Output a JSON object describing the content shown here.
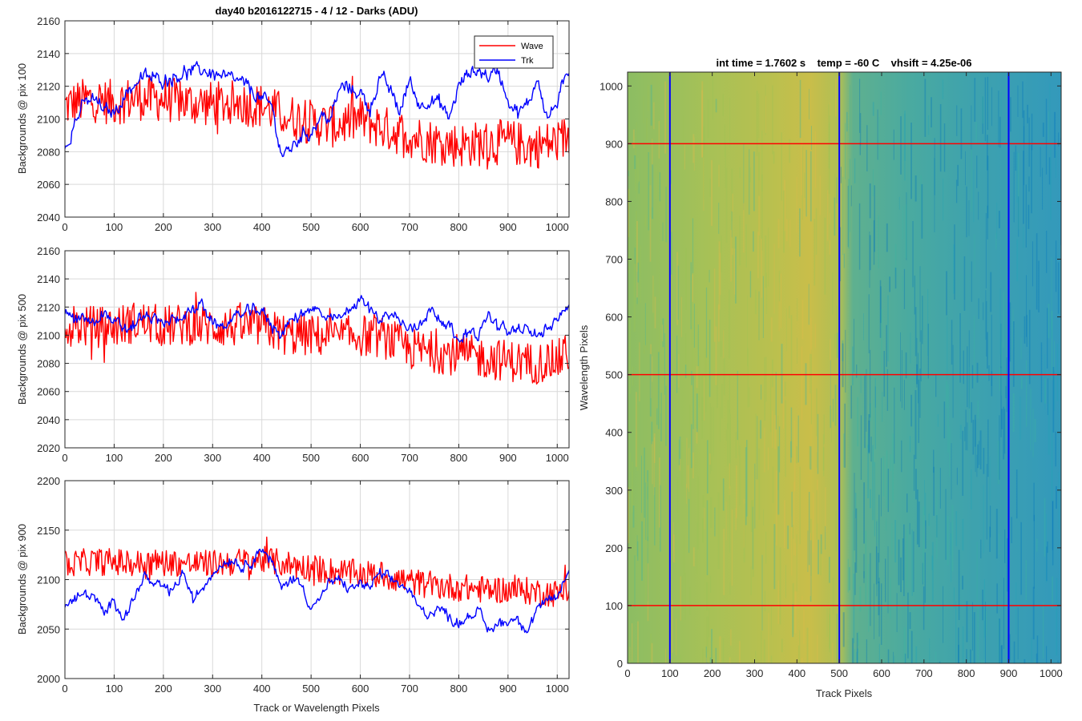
{
  "figure": {
    "title": "day40 b2016122715 - 4 / 12 - Darks (ADU)",
    "xlabel_left": "Track or Wavelength Pixels"
  },
  "legend": {
    "entries": [
      "Wave",
      "Trk"
    ]
  },
  "colors": {
    "wave": "#ff0000",
    "trk": "#0000ff",
    "grid": "#d9d9d9",
    "axis": "#262626"
  },
  "chart_data": [
    {
      "type": "line",
      "title": "day40 b2016122715 - 4 / 12 - Darks (ADU)",
      "xlabel": "",
      "ylabel": "Backgrounds @ pix 100",
      "xlim": [
        0,
        1024
      ],
      "ylim": [
        2040,
        2160
      ],
      "xticks": [
        0,
        100,
        200,
        300,
        400,
        500,
        600,
        700,
        800,
        900,
        1000
      ],
      "yticks": [
        2040,
        2060,
        2080,
        2100,
        2120,
        2140,
        2160
      ],
      "grid": true,
      "legend_position": "top-right",
      "series": [
        {
          "name": "Wave",
          "color": "#ff0000",
          "x": [
            0,
            50,
            100,
            150,
            200,
            250,
            300,
            350,
            400,
            450,
            500,
            550,
            600,
            650,
            700,
            750,
            800,
            850,
            900,
            950,
            1000,
            1024
          ],
          "values": [
            2108,
            2112,
            2110,
            2113,
            2112,
            2110,
            2109,
            2110,
            2108,
            2102,
            2098,
            2096,
            2100,
            2094,
            2090,
            2086,
            2084,
            2085,
            2086,
            2083,
            2086,
            2090
          ],
          "noise": 14
        },
        {
          "name": "Trk",
          "color": "#0000ff",
          "x": [
            0,
            20,
            40,
            60,
            80,
            100,
            130,
            160,
            200,
            240,
            280,
            320,
            360,
            400,
            420,
            440,
            460,
            480,
            500,
            520,
            540,
            560,
            600,
            620,
            640,
            660,
            680,
            700,
            720,
            740,
            760,
            780,
            800,
            820,
            840,
            860,
            880,
            900,
            920,
            940,
            960,
            980,
            1000,
            1024
          ],
          "values": [
            2082,
            2098,
            2110,
            2112,
            2105,
            2104,
            2118,
            2126,
            2124,
            2128,
            2130,
            2126,
            2122,
            2112,
            2108,
            2078,
            2082,
            2090,
            2092,
            2102,
            2100,
            2120,
            2116,
            2106,
            2126,
            2118,
            2104,
            2124,
            2108,
            2112,
            2110,
            2100,
            2120,
            2128,
            2130,
            2126,
            2130,
            2112,
            2104,
            2108,
            2126,
            2100,
            2110,
            2130
          ],
          "noise": 4
        }
      ]
    },
    {
      "type": "line",
      "title": "",
      "xlabel": "",
      "ylabel": "Backgrounds @ pix 500",
      "xlim": [
        0,
        1024
      ],
      "ylim": [
        2020,
        2160
      ],
      "xticks": [
        0,
        100,
        200,
        300,
        400,
        500,
        600,
        700,
        800,
        900,
        1000
      ],
      "yticks": [
        2020,
        2040,
        2060,
        2080,
        2100,
        2120,
        2140,
        2160
      ],
      "grid": true,
      "series": [
        {
          "name": "Wave",
          "color": "#ff0000",
          "x": [
            0,
            50,
            100,
            150,
            200,
            250,
            300,
            350,
            400,
            450,
            500,
            550,
            600,
            650,
            700,
            750,
            800,
            850,
            900,
            950,
            1000,
            1024
          ],
          "values": [
            2108,
            2106,
            2106,
            2110,
            2106,
            2108,
            2106,
            2106,
            2106,
            2100,
            2100,
            2098,
            2100,
            2098,
            2090,
            2088,
            2086,
            2084,
            2082,
            2080,
            2082,
            2088
          ],
          "noise": 15
        },
        {
          "name": "Trk",
          "color": "#0000ff",
          "x": [
            0,
            20,
            40,
            60,
            80,
            100,
            130,
            160,
            200,
            240,
            280,
            300,
            320,
            360,
            400,
            420,
            440,
            460,
            500,
            540,
            560,
            600,
            620,
            640,
            660,
            680,
            700,
            720,
            740,
            760,
            780,
            800,
            820,
            840,
            860,
            880,
            900,
            920,
            940,
            960,
            980,
            1000,
            1024
          ],
          "values": [
            2116,
            2110,
            2112,
            2108,
            2118,
            2108,
            2104,
            2114,
            2108,
            2114,
            2122,
            2108,
            2106,
            2116,
            2118,
            2106,
            2102,
            2110,
            2120,
            2110,
            2112,
            2126,
            2118,
            2112,
            2116,
            2110,
            2104,
            2108,
            2118,
            2114,
            2106,
            2096,
            2104,
            2100,
            2114,
            2106,
            2102,
            2106,
            2102,
            2098,
            2108,
            2112,
            2124
          ],
          "noise": 4
        }
      ]
    },
    {
      "type": "line",
      "title": "",
      "xlabel": "Track or Wavelength Pixels",
      "ylabel": "Backgrounds @ pix 900",
      "xlim": [
        0,
        1024
      ],
      "ylim": [
        2000,
        2200
      ],
      "xticks": [
        0,
        100,
        200,
        300,
        400,
        500,
        600,
        700,
        800,
        900,
        1000
      ],
      "yticks": [
        2000,
        2050,
        2100,
        2150,
        2200
      ],
      "grid": true,
      "series": [
        {
          "name": "Wave",
          "color": "#ff0000",
          "x": [
            0,
            50,
            100,
            150,
            200,
            250,
            300,
            350,
            400,
            450,
            500,
            550,
            600,
            650,
            700,
            750,
            800,
            850,
            900,
            950,
            1000,
            1024
          ],
          "values": [
            2115,
            2118,
            2118,
            2116,
            2118,
            2116,
            2116,
            2118,
            2120,
            2116,
            2112,
            2108,
            2106,
            2104,
            2098,
            2094,
            2092,
            2090,
            2090,
            2088,
            2086,
            2090
          ],
          "noise": 14
        },
        {
          "name": "Trk",
          "color": "#0000ff",
          "x": [
            0,
            20,
            40,
            60,
            80,
            100,
            120,
            140,
            160,
            180,
            200,
            220,
            240,
            260,
            280,
            300,
            320,
            340,
            360,
            380,
            400,
            420,
            440,
            460,
            480,
            500,
            520,
            540,
            560,
            580,
            600,
            620,
            640,
            660,
            680,
            700,
            720,
            740,
            760,
            780,
            800,
            820,
            840,
            860,
            880,
            900,
            920,
            940,
            960,
            980,
            1000,
            1024
          ],
          "values": [
            2072,
            2080,
            2086,
            2082,
            2064,
            2080,
            2062,
            2080,
            2104,
            2094,
            2092,
            2088,
            2108,
            2078,
            2092,
            2108,
            2116,
            2122,
            2112,
            2120,
            2132,
            2118,
            2090,
            2102,
            2096,
            2072,
            2082,
            2098,
            2098,
            2090,
            2096,
            2092,
            2106,
            2100,
            2096,
            2088,
            2070,
            2066,
            2072,
            2062,
            2056,
            2064,
            2068,
            2048,
            2056,
            2058,
            2062,
            2048,
            2072,
            2076,
            2082,
            2110
          ],
          "noise": 5
        }
      ]
    },
    {
      "type": "heatmap",
      "title": "int time = 1.7602 s    temp = -60 C    vhsift = 4.25e-06",
      "xlabel": "Track Pixels",
      "ylabel": "Wavelength Pixels",
      "xlim": [
        0,
        1024
      ],
      "ylim": [
        0,
        1024
      ],
      "xticks": [
        0,
        100,
        200,
        300,
        400,
        500,
        600,
        700,
        800,
        900,
        1000
      ],
      "yticks": [
        0,
        100,
        200,
        300,
        400,
        500,
        600,
        700,
        800,
        900,
        1000
      ],
      "colormap": [
        "#0072bd",
        "#23a3b7",
        "#3db5a0",
        "#9bc256",
        "#e0b94a"
      ],
      "vertical_markers": {
        "x": [
          100,
          500,
          900
        ],
        "color": "#0000ff"
      },
      "horizontal_markers": {
        "y": [
          100,
          500,
          900
        ],
        "color": "#ff0000"
      }
    }
  ]
}
